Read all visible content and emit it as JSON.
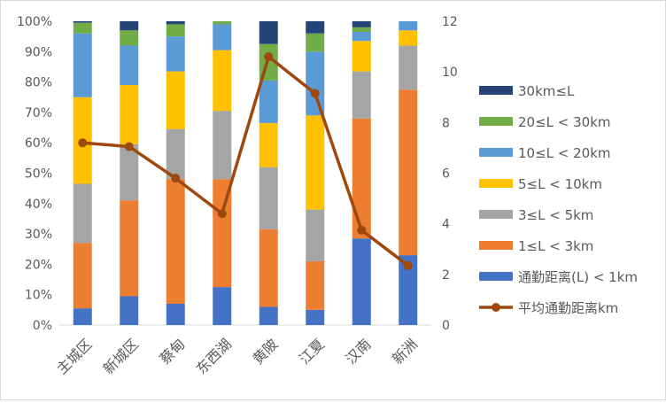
{
  "chart_data": {
    "type": "bar",
    "stacked": true,
    "percent_stacked": true,
    "categories": [
      "主城区",
      "新城区",
      "蔡甸",
      "东西湖",
      "黄陂",
      "江夏",
      "汉南",
      "新洲"
    ],
    "series": [
      {
        "name": "通勤距离(L) < 1km",
        "color": "#4472c4",
        "values": [
          5.5,
          9.5,
          7.0,
          12.5,
          6.0,
          5.0,
          28.5,
          23.0
        ]
      },
      {
        "name": "1≤L < 3km",
        "color": "#ed7d31",
        "values": [
          21.5,
          31.5,
          41.0,
          35.5,
          25.5,
          16.0,
          39.5,
          54.5
        ]
      },
      {
        "name": "3≤L < 5km",
        "color": "#a5a5a5",
        "values": [
          19.5,
          18.5,
          16.5,
          22.5,
          20.5,
          17.0,
          15.5,
          14.5
        ]
      },
      {
        "name": "5≤L < 10km",
        "color": "#ffc000",
        "values": [
          28.5,
          19.5,
          19.0,
          20.0,
          14.5,
          31.0,
          10.0,
          5.0
        ]
      },
      {
        "name": "10≤L < 20km",
        "color": "#5b9bd5",
        "values": [
          21.0,
          13.0,
          11.5,
          8.5,
          14.0,
          21.0,
          3.0,
          3.0
        ]
      },
      {
        "name": "20≤L < 30km",
        "color": "#70ad47",
        "values": [
          3.5,
          5.0,
          4.0,
          1.0,
          12.0,
          6.0,
          1.5,
          0.0
        ]
      },
      {
        "name": "30km≤L",
        "color": "#264478",
        "values": [
          0.5,
          3.0,
          1.0,
          0.0,
          7.5,
          4.0,
          2.0,
          0.0
        ]
      }
    ],
    "line_series": {
      "name": "平均通勤距离km",
      "color": "#9e480e",
      "values": [
        7.2,
        7.05,
        5.8,
        4.4,
        10.6,
        9.15,
        3.75,
        2.35
      ]
    },
    "y_left": {
      "min": 0,
      "max": 100,
      "step": 10,
      "ticks": [
        "0%",
        "10%",
        "20%",
        "30%",
        "40%",
        "50%",
        "60%",
        "70%",
        "80%",
        "90%",
        "100%"
      ]
    },
    "y_right": {
      "min": 0,
      "max": 12,
      "step": 2,
      "ticks": [
        "0",
        "2",
        "4",
        "6",
        "8",
        "10",
        "12"
      ]
    },
    "legend_position": "right",
    "grid": false,
    "title": "",
    "xlabel": "",
    "ylabel": ""
  }
}
